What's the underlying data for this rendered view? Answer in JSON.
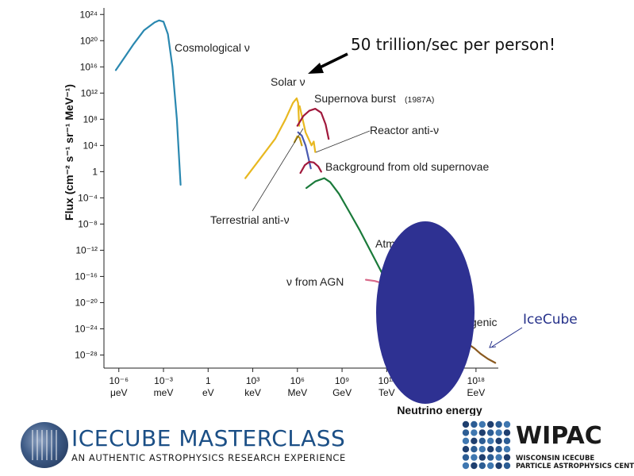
{
  "chart_data": {
    "type": "line",
    "title": "",
    "xlabel": "Neutrino energy",
    "ylabel": "Flux (cm⁻² s⁻¹ sr⁻¹ MeV⁻¹)",
    "x_scale": "log",
    "y_scale": "log",
    "xlim_log10_eV": [
      -7,
      19.5
    ],
    "ylim_log10": [
      -30,
      25
    ],
    "x_ticks": [
      {
        "value_log10_eV": -6,
        "power": "10⁻⁶",
        "unit": "μeV"
      },
      {
        "value_log10_eV": -3,
        "power": "10⁻³",
        "unit": "meV"
      },
      {
        "value_log10_eV": 0,
        "power": "1",
        "unit": "eV"
      },
      {
        "value_log10_eV": 3,
        "power": "10³",
        "unit": "keV"
      },
      {
        "value_log10_eV": 6,
        "power": "10⁶",
        "unit": "MeV"
      },
      {
        "value_log10_eV": 9,
        "power": "10⁹",
        "unit": "GeV"
      },
      {
        "value_log10_eV": 12,
        "power": "10¹²",
        "unit": "TeV"
      },
      {
        "value_log10_eV": 15,
        "power": "10¹⁵",
        "unit": "PeV"
      },
      {
        "value_log10_eV": 18,
        "power": "10¹⁸",
        "unit": "EeV"
      }
    ],
    "y_ticks": [
      {
        "value_log10": 24,
        "label": "10²⁴"
      },
      {
        "value_log10": 20,
        "label": "10²⁰"
      },
      {
        "value_log10": 16,
        "label": "10¹⁶"
      },
      {
        "value_log10": 12,
        "label": "10¹²"
      },
      {
        "value_log10": 8,
        "label": "10⁸"
      },
      {
        "value_log10": 4,
        "label": "10⁴"
      },
      {
        "value_log10": 0,
        "label": "1"
      },
      {
        "value_log10": -4,
        "label": "10⁻⁴"
      },
      {
        "value_log10": -8,
        "label": "10⁻⁸"
      },
      {
        "value_log10": -12,
        "label": "10⁻¹²"
      },
      {
        "value_log10": -16,
        "label": "10⁻¹⁶"
      },
      {
        "value_log10": -20,
        "label": "10⁻²⁰"
      },
      {
        "value_log10": -24,
        "label": "10⁻²⁴"
      },
      {
        "value_log10": -28,
        "label": "10⁻²⁸"
      }
    ],
    "series": [
      {
        "name": "Cosmological ν",
        "color": "#2a88b0",
        "x_log10_eV": [
          -6.2,
          -5.6,
          -5,
          -4.3,
          -3.6,
          -3.3,
          -3,
          -2.7,
          -2.4,
          -2.1,
          -1.85
        ],
        "y_log10": [
          15.5,
          17.5,
          19.5,
          21.6,
          22.8,
          23.1,
          22.9,
          21,
          16,
          8,
          -2
        ]
      },
      {
        "name": "Solar ν",
        "color": "#e8b820",
        "x_log10_eV": [
          2.5,
          3.5,
          4.5,
          5.2,
          5.7,
          5.95,
          6.05,
          6.12
        ],
        "y_log10": [
          -1,
          2,
          5,
          8,
          10.5,
          11.2,
          10.5,
          7
        ]
      },
      {
        "name": "Solar ν",
        "color": "#e8b820",
        "x_log10_eV": [
          6.15,
          6.35,
          6.55,
          6.75,
          6.95,
          7.1,
          7.2
        ],
        "y_log10": [
          10,
          8,
          6,
          5,
          4,
          4.6,
          3
        ]
      },
      {
        "name": "Supernova burst (1987A)",
        "color": "#a0183c",
        "x_log10_eV": [
          6.0,
          6.4,
          6.8,
          7.2,
          7.6,
          7.9,
          8.1
        ],
        "y_log10": [
          7,
          8.5,
          9.3,
          9.6,
          9,
          7.2,
          5
        ]
      },
      {
        "name": "Reactor anti-ν",
        "color": "#4a5ab0",
        "x_log10_eV": [
          6.05,
          6.3,
          6.55,
          6.75,
          6.9
        ],
        "y_log10": [
          6,
          5.5,
          4,
          2,
          0.5
        ]
      },
      {
        "name": "Terrestrial anti-ν",
        "color": "#caa010",
        "x_log10_eV": [
          5.8,
          6.0,
          6.15,
          6.3
        ],
        "y_log10": [
          4.5,
          5.4,
          5.2,
          4
        ]
      },
      {
        "name": "Background from old supernovae",
        "color": "#a0183c",
        "x_log10_eV": [
          6.2,
          6.5,
          6.8,
          7.1,
          7.4,
          7.6
        ],
        "y_log10": [
          -0.2,
          1,
          1.5,
          1.4,
          0.8,
          0
        ]
      },
      {
        "name": "Atmospheric ν",
        "color": "#1a7a3a",
        "x_log10_eV": [
          6.6,
          7.2,
          7.8,
          8.2,
          8.8,
          9.5,
          10.2,
          11,
          11.8,
          12.6
        ],
        "y_log10": [
          -2.5,
          -1.5,
          -1,
          -1.6,
          -3.4,
          -6.2,
          -9,
          -12.5,
          -16,
          -19
        ]
      },
      {
        "name": "ν from AGN",
        "color": "#d86a8a",
        "x_log10_eV": [
          10.6,
          11.2,
          11.8,
          12.4,
          12.8
        ],
        "y_log10": [
          -16.5,
          -16.7,
          -17.1,
          -17.8,
          -18.3
        ]
      },
      {
        "name": "Cosmogenic ν",
        "color": "#8a5a20",
        "x_log10_eV": [
          16.8,
          17.4,
          17.9,
          18.3,
          18.8,
          19.3
        ],
        "y_log10": [
          -25.5,
          -26.2,
          -27,
          -27.8,
          -28.6,
          -29.2
        ]
      }
    ],
    "annotations": {
      "cosmological": "Cosmological ν",
      "solar": "Solar ν",
      "supernova_burst": "Supernova burst",
      "supernova_burst_year": "(1987A)",
      "reactor": "Reactor anti-ν",
      "background_old_sn": "Background from old supernovae",
      "terrestrial": "Terrestrial anti-ν",
      "atmospheric_partial": "Atm",
      "agn": "ν from AGN",
      "cosmogenic_partial": "genic"
    },
    "callout": "50 trillion/sec per person!",
    "icecube_label": "IceCube",
    "occluder_color": "#2e3192",
    "grid": false,
    "legend": "none"
  },
  "footer": {
    "masterclass_title": "ICECUBE MASTERCLASS",
    "masterclass_subtitle": "AN AUTHENTIC ASTROPHYSICS RESEARCH EXPERIENCE",
    "wipac_name": "WIPAC",
    "wipac_sub1": "WISCONSIN ICECUBE",
    "wipac_sub2": "PARTICLE ASTROPHYSICS CENTER"
  }
}
